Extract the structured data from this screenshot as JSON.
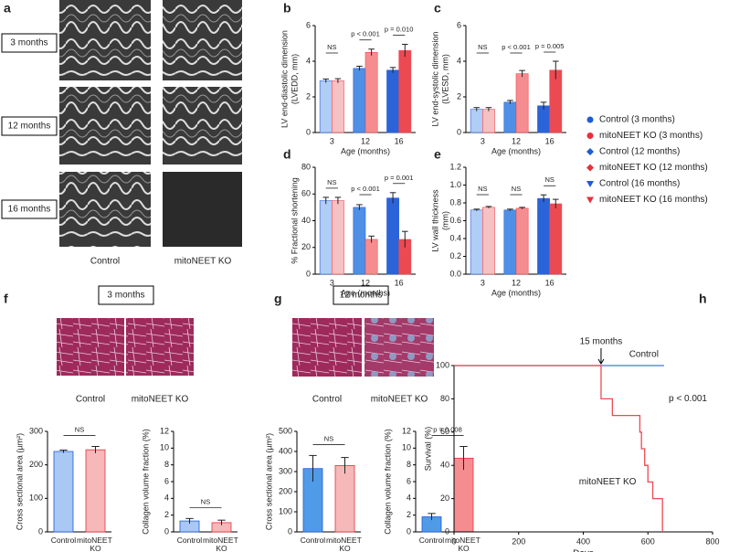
{
  "panel_labels": [
    "a",
    "b",
    "c",
    "d",
    "e",
    "f",
    "g",
    "h"
  ],
  "panel_a": {
    "rows": [
      "3 months",
      "12 months",
      "16 months"
    ],
    "columns": [
      "Control",
      "mitoNEET KO"
    ]
  },
  "panel_f": {
    "title": "3 months",
    "columns": [
      "Control",
      "mitoNEET KO"
    ]
  },
  "panel_g": {
    "title": "12 months",
    "columns": [
      "Control",
      "mitoNEET KO"
    ]
  },
  "legend": [
    {
      "name": "Control (3 months)",
      "color": "#1f5bd6",
      "marker": "circle"
    },
    {
      "name": "mitoNEET KO (3 months)",
      "color": "#e8303a",
      "marker": "circle"
    },
    {
      "name": "Control (12 months)",
      "color": "#1f5bd6",
      "marker": "diamond"
    },
    {
      "name": "mitoNEET KO (12 months)",
      "color": "#e8303a",
      "marker": "diamond"
    },
    {
      "name": "Control (16 months)",
      "color": "#1f5bd6",
      "marker": "triangle"
    },
    {
      "name": "mitoNEET KO (16 months)",
      "color": "#e8303a",
      "marker": "triangle"
    }
  ],
  "chart_data": [
    {
      "type": "bar",
      "ylabel": [
        "LV end-diastolic dimension",
        "(LVEDD, mm)"
      ],
      "xlabel": "Age (months)",
      "categories": [
        "3",
        "12",
        "16"
      ],
      "ylim": [
        0,
        6
      ],
      "yticks": [
        0,
        2,
        4,
        6
      ],
      "series": [
        {
          "name": "Control",
          "colors": [
            "#b0cdf5",
            "#4f8fe6",
            "#2b63d9"
          ],
          "values": [
            2.9,
            3.6,
            3.5
          ],
          "errors": [
            0.1,
            0.12,
            0.15
          ]
        },
        {
          "name": "mitoNEET KO",
          "colors": [
            "#f6c1c3",
            "#f58d90",
            "#ec4a52"
          ],
          "values": [
            2.9,
            4.5,
            4.6
          ],
          "errors": [
            0.12,
            0.18,
            0.35
          ]
        }
      ],
      "annotations": [
        "NS",
        "p < 0.001",
        "p = 0.010"
      ]
    },
    {
      "type": "bar",
      "ylabel": [
        "LV end-systolic dimension",
        "(LVESD, mm)"
      ],
      "xlabel": "Age (months)",
      "categories": [
        "3",
        "12",
        "16"
      ],
      "ylim": [
        0,
        6
      ],
      "yticks": [
        0,
        2,
        4,
        6
      ],
      "series": [
        {
          "name": "Control",
          "colors": [
            "#b0cdf5",
            "#4f8fe6",
            "#2b63d9"
          ],
          "values": [
            1.3,
            1.7,
            1.5
          ],
          "errors": [
            0.1,
            0.1,
            0.2
          ]
        },
        {
          "name": "mitoNEET KO",
          "colors": [
            "#f6c1c3",
            "#f58d90",
            "#ec4a52"
          ],
          "values": [
            1.3,
            3.3,
            3.5
          ],
          "errors": [
            0.1,
            0.18,
            0.5
          ]
        }
      ],
      "annotations": [
        "NS",
        "p < 0.001",
        "p = 0.005"
      ]
    },
    {
      "type": "bar",
      "ylabel": [
        "% Fractional shortening"
      ],
      "xlabel": "Age (months)",
      "categories": [
        "3",
        "12",
        "16"
      ],
      "ylim": [
        0,
        80
      ],
      "yticks": [
        0,
        20,
        40,
        60,
        80
      ],
      "series": [
        {
          "name": "Control",
          "colors": [
            "#b0cdf5",
            "#4f8fe6",
            "#2b63d9"
          ],
          "values": [
            55,
            50,
            57
          ],
          "errors": [
            2.5,
            2,
            4
          ]
        },
        {
          "name": "mitoNEET KO",
          "colors": [
            "#f6c1c3",
            "#f58d90",
            "#ec4a52"
          ],
          "values": [
            55,
            26,
            26
          ],
          "errors": [
            2.5,
            2.5,
            6
          ]
        }
      ],
      "annotations": [
        "NS",
        "p < 0.001",
        "p = 0.001"
      ]
    },
    {
      "type": "bar",
      "ylabel": [
        "LV wall thickness",
        "(mm)"
      ],
      "xlabel": "Age (months)",
      "categories": [
        "3",
        "12",
        "16"
      ],
      "ylim": [
        0,
        1.2
      ],
      "yticks": [
        {
          "value": 0,
          "label": "0.0"
        },
        {
          "value": 0.2,
          "label": "0.2"
        },
        {
          "value": 0.4,
          "label": "0.4"
        },
        {
          "value": 0.6,
          "label": "0.6"
        },
        {
          "value": 0.8,
          "label": "0.8"
        },
        {
          "value": 1,
          "label": "1.0"
        },
        {
          "value": 1.2,
          "label": "1.2"
        }
      ],
      "series": [
        {
          "name": "Control",
          "colors": [
            "#b0cdf5",
            "#4f8fe6",
            "#2b63d9"
          ],
          "values": [
            0.72,
            0.72,
            0.85
          ],
          "errors": [
            0.01,
            0.01,
            0.04
          ]
        },
        {
          "name": "mitoNEET KO",
          "colors": [
            "#f6c1c3",
            "#f58d90",
            "#ec4a52"
          ],
          "values": [
            0.75,
            0.74,
            0.79
          ],
          "errors": [
            0.01,
            0.01,
            0.05
          ]
        }
      ],
      "annotations": [
        "NS",
        "NS",
        "NS"
      ]
    },
    {
      "type": "bar",
      "ylabel": [
        "Cross sectional area (µm²)"
      ],
      "categories": [
        "Control",
        "mitoNEET KO"
      ],
      "ylim": [
        0,
        300
      ],
      "yticks": [
        0,
        100,
        200,
        300
      ],
      "values": [
        240,
        245
      ],
      "errors": [
        4,
        10
      ],
      "colors": [
        "#a9c8f3",
        "#f6b8b9"
      ],
      "annotation": "NS"
    },
    {
      "type": "bar",
      "ylabel": [
        "Collagen volume fraction (%)"
      ],
      "categories": [
        "Control",
        "mitoNEET KO"
      ],
      "ylim": [
        0,
        12
      ],
      "yticks": [
        0,
        2,
        4,
        6,
        8,
        10,
        12
      ],
      "values": [
        1.3,
        1.1
      ],
      "errors": [
        0.3,
        0.3
      ],
      "colors": [
        "#a9c8f3",
        "#f6b8b9"
      ],
      "annotation": "NS"
    },
    {
      "type": "bar",
      "ylabel": [
        "Cross sectional area (µm²)"
      ],
      "categories": [
        "Control",
        "mitoNEET KO"
      ],
      "ylim": [
        0,
        500
      ],
      "yticks": [
        0,
        100,
        200,
        300,
        400,
        500
      ],
      "values": [
        315,
        330
      ],
      "errors": [
        65,
        40
      ],
      "colors": [
        "#4f9be8",
        "#f6b8b9"
      ],
      "annotation": "NS"
    },
    {
      "type": "bar",
      "ylabel": [
        "Collagen volume fraction (%)"
      ],
      "categories": [
        "Control",
        "mitoNEET KO"
      ],
      "ylim": [
        0,
        12
      ],
      "yticks": [
        0,
        2,
        4,
        6,
        8,
        10,
        12
      ],
      "values": [
        1.8,
        8.8
      ],
      "errors": [
        0.4,
        1.4
      ],
      "colors": [
        "#4f9be8",
        "#f58d90"
      ],
      "annotation": "p = 0.008"
    },
    {
      "type": "line",
      "xlabel": "Days",
      "ylabel": [
        "Survival (%)"
      ],
      "xlim": [
        0,
        800
      ],
      "xticks": [
        0,
        200,
        400,
        600,
        800
      ],
      "ylim": [
        0,
        100
      ],
      "yticks": [
        0,
        20,
        40,
        60,
        80,
        100
      ],
      "series": [
        {
          "name": "Control",
          "color": "#3a7be0",
          "x": [
            0,
            650
          ],
          "values": [
            100,
            100
          ]
        },
        {
          "name": "mitoNEET KO",
          "color": "#ec4a52",
          "x": [
            0,
            455,
            455,
            490,
            490,
            575,
            575,
            580,
            580,
            590,
            590,
            600,
            600,
            615,
            615,
            645,
            645
          ],
          "values": [
            100,
            100,
            80,
            80,
            70,
            70,
            60,
            60,
            50,
            50,
            40,
            40,
            30,
            30,
            20,
            20,
            0
          ]
        }
      ],
      "annotations": [
        "15 months",
        "p < 0.001"
      ]
    }
  ]
}
